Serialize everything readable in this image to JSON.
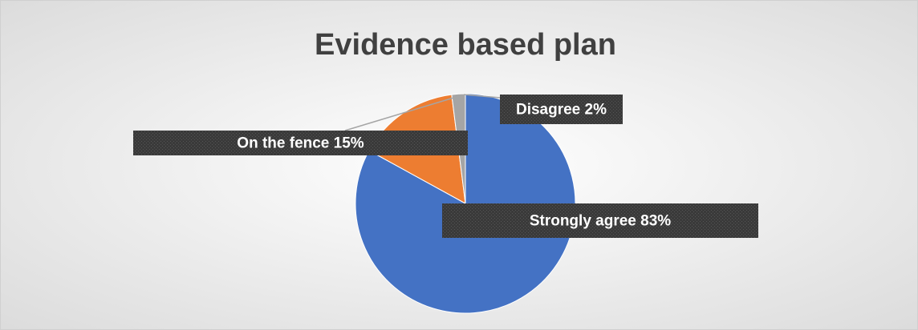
{
  "chart_data": {
    "type": "pie",
    "title": "Evidence based plan",
    "values": [
      83,
      15,
      2
    ],
    "value_labels": [
      "Strongly agree 83%",
      "On the fence 15%",
      "Disagree 2%"
    ],
    "colors": [
      "#4472c4",
      "#ed7d31",
      "#a5a5a5"
    ]
  }
}
